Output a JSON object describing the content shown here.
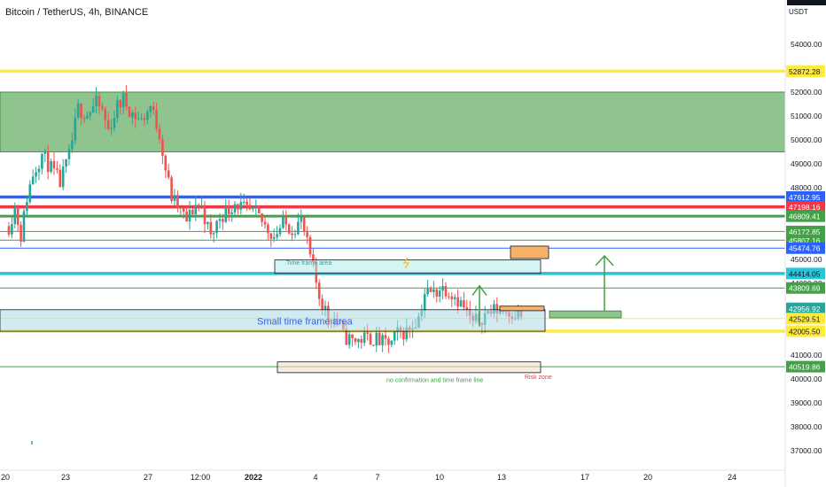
{
  "header": {
    "title": "Bitcoin / TetherUS, 4h, BINANCE",
    "currency": "USDT"
  },
  "colors": {
    "up": "#26a69a",
    "down": "#ef5350",
    "yellow": "#ffeb3b",
    "blue": "#2962ff",
    "red": "#f23645",
    "green": "#43a047",
    "cyan": "#26c6da",
    "zone_green": "#8fc48f"
  },
  "chart_data": {
    "type": "candlestick",
    "title": "Bitcoin / TetherUS, 4h, BINANCE",
    "ylim": [
      36600,
      55700
    ],
    "y_ticks": [
      37000,
      38000,
      39000,
      40000,
      41000,
      42000,
      43000,
      44000,
      45000,
      46000,
      47000,
      48000,
      49000,
      50000,
      51000,
      52000,
      53000,
      54000
    ],
    "y_tick_labels": [
      "37000.00",
      "38000.00",
      "39000.00",
      "40000.00",
      "41000.00",
      "42000.00",
      "43000.00",
      "44000.00",
      "45000.00",
      "46000.00",
      "47000.00",
      "48000.00",
      "49000.00",
      "50000.00",
      "51000.00",
      "52000.00",
      "53000.00",
      "54000.00"
    ],
    "x_labels": [
      "20",
      "23",
      "27",
      "12:00",
      "2022",
      "4",
      "7",
      "10",
      "13",
      "17",
      "20",
      "24"
    ],
    "candle_path": [
      [
        0,
        46400
      ],
      [
        4,
        47200
      ],
      [
        8,
        46000
      ],
      [
        12,
        47600
      ],
      [
        16,
        48600
      ],
      [
        22,
        49400
      ],
      [
        28,
        48800
      ],
      [
        34,
        48200
      ],
      [
        40,
        49300
      ],
      [
        46,
        51300
      ],
      [
        52,
        51100
      ],
      [
        58,
        51500
      ],
      [
        62,
        51200
      ],
      [
        66,
        50400
      ],
      [
        72,
        51400
      ],
      [
        76,
        51700
      ],
      [
        82,
        51100
      ],
      [
        88,
        50800
      ],
      [
        94,
        51400
      ],
      [
        100,
        50300
      ],
      [
        104,
        48800
      ],
      [
        108,
        47600
      ],
      [
        114,
        47000
      ],
      [
        118,
        46600
      ],
      [
        124,
        47300
      ],
      [
        128,
        47200
      ],
      [
        134,
        45900
      ],
      [
        140,
        46800
      ],
      [
        146,
        47100
      ],
      [
        150,
        47400
      ],
      [
        158,
        47000
      ],
      [
        164,
        46900
      ],
      [
        170,
        46400
      ],
      [
        176,
        46000
      ],
      [
        182,
        46500
      ],
      [
        188,
        46300
      ],
      [
        194,
        46600
      ],
      [
        200,
        45100
      ],
      [
        206,
        43500
      ],
      [
        212,
        42600
      ],
      [
        218,
        42500
      ],
      [
        222,
        41800
      ],
      [
        228,
        41600
      ],
      [
        236,
        41700
      ],
      [
        242,
        41700
      ],
      [
        248,
        41500
      ],
      [
        254,
        41500
      ],
      [
        258,
        41900
      ],
      [
        264,
        42000
      ],
      [
        268,
        42300
      ],
      [
        272,
        42600
      ],
      [
        276,
        43600
      ],
      [
        282,
        43600
      ],
      [
        286,
        43800
      ],
      [
        290,
        43800
      ],
      [
        296,
        43500
      ],
      [
        302,
        43000
      ],
      [
        308,
        42300
      ],
      [
        312,
        42500
      ],
      [
        318,
        42800
      ],
      [
        324,
        42900
      ],
      [
        328,
        42900
      ],
      [
        334,
        42800
      ],
      [
        340,
        42700
      ]
    ],
    "horizontal_levels": [
      {
        "label": "52872.28",
        "value": 52872.28,
        "color": "#ffeb3b",
        "text_color": "#131722"
      },
      {
        "label": "47612.95",
        "value": 47612.95,
        "color": "#2962ff",
        "text_color": "#ffffff"
      },
      {
        "label": "47198.16",
        "value": 47198.16,
        "color": "#f23645",
        "text_color": "#ffffff"
      },
      {
        "label": "46809.41",
        "value": 46809.41,
        "color": "#43a047",
        "text_color": "#ffffff"
      },
      {
        "label": "46172.85",
        "value": 46172.85,
        "color": "#43a047",
        "text_color": "#ffffff"
      },
      {
        "label": "45807.16",
        "value": 45807.16,
        "color": "#43a047",
        "text_color": "#ffffff"
      },
      {
        "label": "45474.76",
        "value": 45474.76,
        "color": "#2962ff",
        "text_color": "#ffffff"
      },
      {
        "label": "44414.05",
        "value": 44414.05,
        "color": "#26c6da",
        "text_color": "#131722"
      },
      {
        "label": "43809.69",
        "value": 43809.69,
        "color": "#43a047",
        "text_color": "#ffffff"
      },
      {
        "label": "42956.92",
        "value": 42956.92,
        "color": "#26a69a",
        "text_color": "#ffffff"
      },
      {
        "label": "02:10:53",
        "value": 42560,
        "color": "#26a69a",
        "text_color": "#ffffff"
      },
      {
        "label": "42529.51",
        "value": 42529.51,
        "color": "#ffeb3b",
        "text_color": "#131722"
      },
      {
        "label": "42005.50",
        "value": 42005.5,
        "color": "#ffeb3b",
        "text_color": "#131722"
      },
      {
        "label": "40519.86",
        "value": 40519.86,
        "color": "#43a047",
        "text_color": "#ffffff"
      }
    ],
    "annotations": [
      {
        "text": "Time frame area",
        "x": 323,
        "value": 44780,
        "color": "#26a69a"
      },
      {
        "text": "Small time frame area",
        "x": 290,
        "value": 42280,
        "color": "#2962ff"
      },
      {
        "text": "no confirmation and time frame line",
        "x": 436,
        "value": 39870,
        "color": "#43a047"
      },
      {
        "text": "Risk zone",
        "x": 592,
        "value": 40000,
        "color": "#f23645"
      }
    ],
    "grid": false
  }
}
